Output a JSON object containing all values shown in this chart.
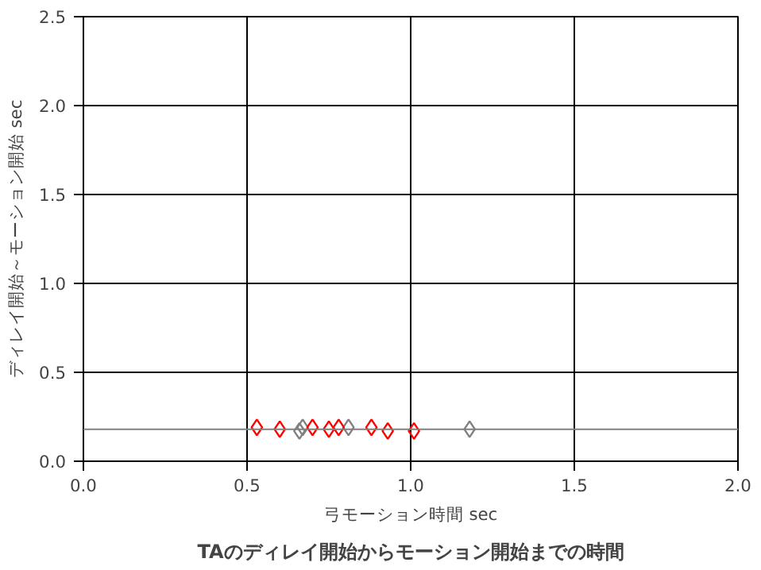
{
  "chart_data": {
    "type": "scatter",
    "title": "TAのディレイ開始からモーション開始までの時間",
    "xlabel": "弓モーション時間 sec",
    "ylabel": "ディレイ開始～モーション開始 sec",
    "xlim": [
      0,
      2
    ],
    "ylim": [
      0,
      2.5
    ],
    "xticks": [
      {
        "value": 0,
        "label": "0.0"
      },
      {
        "value": 0.5,
        "label": "0.5"
      },
      {
        "value": 1,
        "label": "1.0"
      },
      {
        "value": 1.5,
        "label": "1.5"
      },
      {
        "value": 2,
        "label": "2.0"
      }
    ],
    "yticks": [
      {
        "value": 0,
        "label": "0.0"
      },
      {
        "value": 0.5,
        "label": "0.5"
      },
      {
        "value": 1,
        "label": "1.0"
      },
      {
        "value": 1.5,
        "label": "1.5"
      },
      {
        "value": 2,
        "label": "2.0"
      },
      {
        "value": 2.5,
        "label": "2.5"
      }
    ],
    "grid": true,
    "marker": "diamond",
    "series": [
      {
        "color": "#808080",
        "x": [
          0.66,
          0.67,
          0.81,
          1.18
        ],
        "values": [
          0.17,
          0.19,
          0.19,
          0.18
        ]
      },
      {
        "color": "#ff0000",
        "x": [
          0.53,
          0.6,
          0.7,
          0.75,
          0.78,
          0.88,
          0.93,
          1.01
        ],
        "values": [
          0.19,
          0.18,
          0.19,
          0.18,
          0.19,
          0.19,
          0.17,
          0.17
        ]
      }
    ],
    "ref_lines": [
      {
        "axis": "y",
        "value": 0.18,
        "label": null,
        "color": "#808080"
      }
    ]
  }
}
